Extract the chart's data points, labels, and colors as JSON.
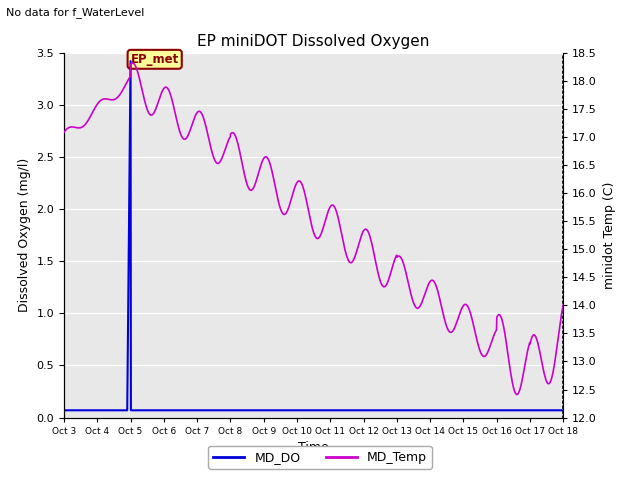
{
  "title": "EP miniDOT Dissolved Oxygen",
  "no_data_text": "No data for f_WaterLevel",
  "xlabel": "Time",
  "ylabel_left": "Dissolved Oxygen (mg/l)",
  "ylabel_right": "minidot Temp (C)",
  "ylim_left": [
    0,
    3.5
  ],
  "ylim_right": [
    12.0,
    18.5
  ],
  "background_color": "#e8e8e8",
  "ep_met_label": "EP_met",
  "ep_met_box_color": "#ffff99",
  "ep_met_box_edge": "#8B0000",
  "ep_met_text_color": "#8B0000",
  "do_color": "#0000dd",
  "temp_color": "#cc00cc",
  "tick_labels": [
    "Oct 3",
    "Oct 4",
    "Oct 5",
    "Oct 6",
    "Oct 7",
    "Oct 8",
    "Oct 9",
    "Oct 10",
    "Oct 11",
    "Oct 12",
    "Oct 13",
    "Oct 14",
    "Oct 15",
    "Oct 16",
    "Oct 17",
    "Oct 18"
  ],
  "right_ticks": [
    12.0,
    12.5,
    13.0,
    13.5,
    14.0,
    14.5,
    15.0,
    15.5,
    16.0,
    16.5,
    17.0,
    17.5,
    18.0,
    18.5
  ],
  "left_ticks": [
    0.0,
    0.5,
    1.0,
    1.5,
    2.0,
    2.5,
    3.0,
    3.5
  ]
}
